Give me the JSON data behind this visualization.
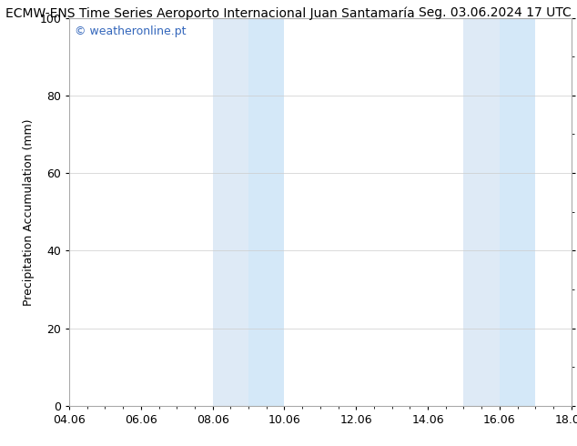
{
  "title_left": "ECMW-ENS Time Series Aeroporto Internacional Juan Santamaría",
  "title_right": "Seg. 03.06.2024 17 UTC",
  "ylabel": "Precipitation Accumulation (mm)",
  "watermark": "© weatheronline.pt",
  "watermark_color": "#3366bb",
  "ylim": [
    0,
    100
  ],
  "yticks": [
    0,
    20,
    40,
    60,
    80,
    100
  ],
  "xtick_labels": [
    "04.06",
    "06.06",
    "08.06",
    "10.06",
    "12.06",
    "14.06",
    "16.06",
    "18.06"
  ],
  "xtick_positions": [
    0,
    2,
    4,
    6,
    8,
    10,
    12,
    14
  ],
  "xlim": [
    0,
    14
  ],
  "shade_bands": [
    {
      "xmin": 4.0,
      "xmax": 5.0,
      "color": "#deeaf6"
    },
    {
      "xmin": 5.0,
      "xmax": 6.0,
      "color": "#d4e8f8"
    },
    {
      "xmin": 11.0,
      "xmax": 12.0,
      "color": "#deeaf6"
    },
    {
      "xmin": 12.0,
      "xmax": 13.0,
      "color": "#d4e8f8"
    }
  ],
  "background_color": "#ffffff",
  "plot_bg_color": "#ffffff",
  "grid_color": "#cccccc",
  "title_fontsize": 10,
  "tick_fontsize": 9,
  "ylabel_fontsize": 9,
  "minor_tick_interval": 0.5
}
